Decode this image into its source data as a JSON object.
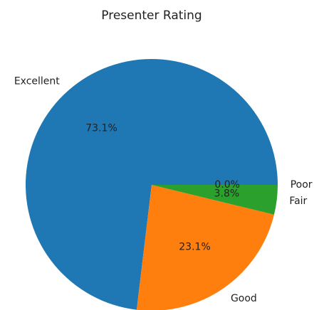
{
  "chart_data": {
    "type": "pie",
    "title": "Presenter Rating",
    "categories": [
      "Excellent",
      "Good",
      "Fair",
      "Poor"
    ],
    "values": [
      73.1,
      23.1,
      3.8,
      0.0
    ],
    "value_labels": [
      "73.1%",
      "23.1%",
      "3.8%",
      "0.0%"
    ],
    "colors": [
      "#1f77b4",
      "#ff7f0e",
      "#2ca02c",
      "#d62728"
    ],
    "startangle": 0,
    "counterclock": true
  }
}
